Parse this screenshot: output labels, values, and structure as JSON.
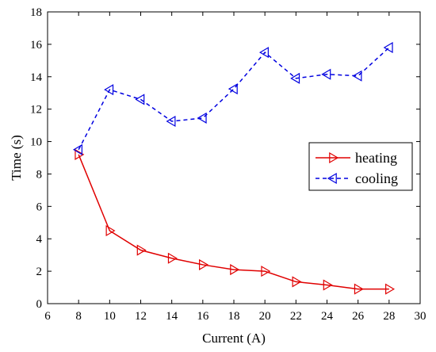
{
  "chart_data": {
    "type": "line",
    "title": "",
    "xlabel": "Current (A)",
    "ylabel": "Time (s)",
    "xlim": [
      6,
      30
    ],
    "ylim": [
      0,
      18
    ],
    "xticks": [
      6,
      8,
      10,
      12,
      14,
      16,
      18,
      20,
      22,
      24,
      26,
      28,
      30
    ],
    "yticks": [
      0,
      2,
      4,
      6,
      8,
      10,
      12,
      14,
      16,
      18
    ],
    "grid": false,
    "legend_position": "right",
    "x": [
      8,
      10,
      12,
      14,
      16,
      18,
      20,
      22,
      24,
      26,
      28
    ],
    "series": [
      {
        "name": "heating",
        "color": "#e00000",
        "line_style": "solid",
        "marker": "triangle-right",
        "values": [
          9.2,
          4.5,
          3.3,
          2.8,
          2.4,
          2.1,
          2.0,
          1.35,
          1.15,
          0.9,
          0.9
        ]
      },
      {
        "name": "cooling",
        "color": "#0000e0",
        "line_style": "dashed",
        "marker": "triangle-left",
        "values": [
          9.5,
          13.2,
          12.6,
          11.25,
          11.45,
          13.25,
          15.5,
          13.9,
          14.15,
          14.05,
          15.8
        ]
      }
    ]
  }
}
